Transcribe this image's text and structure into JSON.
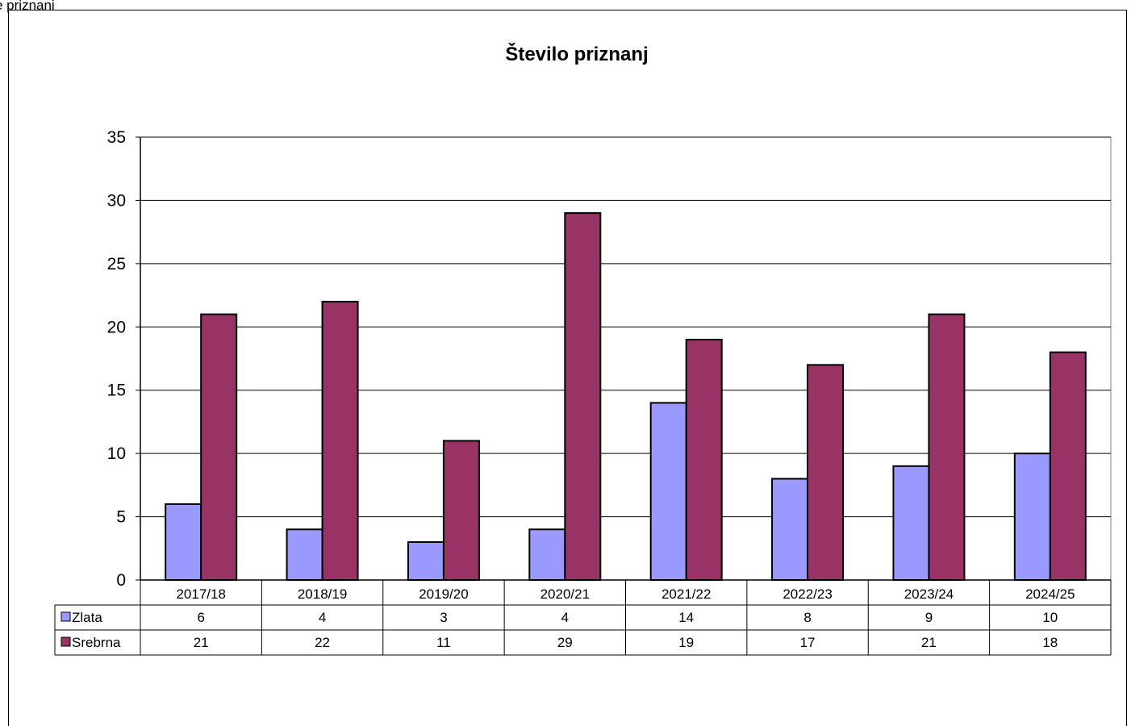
{
  "header_fragment": "e priznanj",
  "chart_data": {
    "type": "bar",
    "title": "Število priznanj",
    "categories": [
      "2017/18",
      "2018/19",
      "2019/20",
      "2020/21",
      "2021/22",
      "2022/23",
      "2023/24",
      "2024/25"
    ],
    "series": [
      {
        "name": "Zlata",
        "values": [
          6,
          4,
          3,
          4,
          14,
          8,
          9,
          10
        ],
        "color": "#9999ff"
      },
      {
        "name": "Srebrna",
        "values": [
          21,
          22,
          11,
          29,
          19,
          17,
          21,
          18
        ],
        "color": "#993366"
      }
    ],
    "ylim": [
      0,
      35
    ],
    "yticks": [
      0,
      5,
      10,
      15,
      20,
      25,
      30,
      35
    ],
    "grid": true,
    "legend": "data table below chart"
  }
}
